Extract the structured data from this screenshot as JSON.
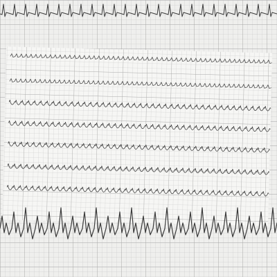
{
  "photo": {
    "subject": "ecg-rhythm-strip-photo",
    "paper_color": "#f4f4f2",
    "grid_color": "#9e9e9e",
    "trace_color": "#3a3a3a"
  },
  "strips": [
    {
      "id": "strip-1",
      "label": "",
      "pattern": "tall-spiky"
    },
    {
      "id": "strip-2",
      "label": "",
      "pattern": "fine-saw"
    },
    {
      "id": "strip-3",
      "label": "",
      "pattern": "fine-saw"
    },
    {
      "id": "strip-4",
      "label": "",
      "pattern": "deep-scoop"
    },
    {
      "id": "strip-5",
      "label": "",
      "pattern": "deep-scoop"
    },
    {
      "id": "strip-6",
      "label": "",
      "pattern": "deep-scoop"
    },
    {
      "id": "strip-7",
      "label": "",
      "pattern": "deep-scoop"
    },
    {
      "id": "strip-8",
      "label": "",
      "pattern": "deep-scoop"
    },
    {
      "id": "strip-9",
      "label": "",
      "pattern": "wide-complex"
    }
  ]
}
